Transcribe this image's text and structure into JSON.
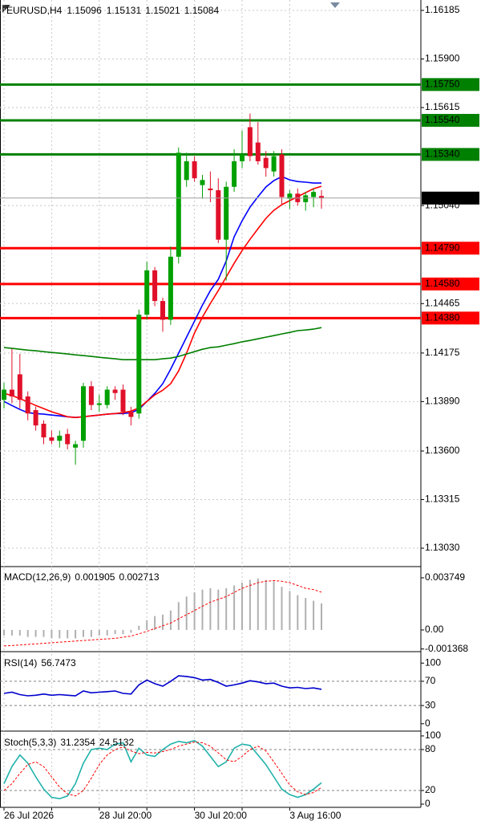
{
  "chart_data": [
    {
      "type": "candlestick",
      "symbol": "EURUSD,H4",
      "categories": [
        "26 Jul 2026",
        null,
        null,
        null,
        null,
        null,
        null,
        null,
        null,
        null,
        null,
        null,
        "28 Jul 20:00",
        null,
        null,
        null,
        null,
        null,
        null,
        null,
        null,
        null,
        null,
        null,
        "30 Jul 20:00",
        null,
        null,
        null,
        null,
        null,
        null,
        null,
        null,
        null,
        null,
        null,
        "3 Aug 16:00",
        null,
        null,
        null,
        null
      ],
      "open": [
        1.139,
        1.1396,
        1.1405,
        1.1392,
        1.1384,
        1.1376,
        1.1368,
        1.1366,
        1.137,
        1.1362,
        1.1366,
        1.1398,
        1.1387,
        1.1387,
        1.1396,
        1.1396,
        1.1383,
        1.1382,
        1.144,
        1.1466,
        1.1448,
        1.1437,
        1.1474,
        1.1519,
        1.153,
        1.1516,
        1.1514,
        1.1513,
        1.1484,
        1.1515,
        1.153,
        1.155,
        1.1541,
        1.1532,
        1.1524,
        1.1534,
        1.1508,
        1.1511,
        1.1506,
        1.1509,
        1.15096
      ],
      "high": [
        1.14,
        1.142,
        1.1417,
        1.1395,
        1.1386,
        1.1378,
        1.1372,
        1.1372,
        1.1373,
        1.1366,
        1.14,
        1.1401,
        1.1393,
        1.1398,
        1.1398,
        1.1399,
        1.1386,
        1.1443,
        1.1471,
        1.1468,
        1.145,
        1.148,
        1.1538,
        1.1535,
        1.1533,
        1.1522,
        1.1524,
        1.152,
        1.1518,
        1.1537,
        1.1548,
        1.1558,
        1.1553,
        1.1536,
        1.1536,
        1.1537,
        1.1513,
        1.1514,
        1.1512,
        1.1514,
        1.15131
      ],
      "low": [
        1.1385,
        1.1388,
        1.1385,
        1.1378,
        1.1372,
        1.1364,
        1.1364,
        1.1362,
        1.1361,
        1.1352,
        1.1362,
        1.1384,
        1.1383,
        1.1385,
        1.139,
        1.1381,
        1.1375,
        1.1379,
        1.1437,
        1.1445,
        1.143,
        1.1434,
        1.147,
        1.1515,
        1.1518,
        1.1508,
        1.1506,
        1.1482,
        1.146,
        1.1512,
        1.1526,
        1.153,
        1.1528,
        1.1521,
        1.1521,
        1.1505,
        1.1502,
        1.1504,
        1.1501,
        1.1503,
        1.15021
      ],
      "close": [
        1.1396,
        1.1392,
        1.139,
        1.1382,
        1.1375,
        1.1368,
        1.1366,
        1.1369,
        1.1364,
        1.1364,
        1.1398,
        1.1387,
        1.1388,
        1.1396,
        1.1394,
        1.1383,
        1.138,
        1.144,
        1.1466,
        1.1448,
        1.1437,
        1.1474,
        1.1535,
        1.153,
        1.152,
        1.1519,
        1.1513,
        1.1484,
        1.1515,
        1.153,
        1.1534,
        1.1533,
        1.153,
        1.1526,
        1.1533,
        1.1509,
        1.1511,
        1.1506,
        1.151,
        1.1512,
        1.15084
      ],
      "up_color": "#00a000",
      "down_color": "#e0102a",
      "series": [
        {
          "color": "#0000ff",
          "style": "line",
          "values": [
            1.13891,
            1.13867,
            1.13844,
            1.13825,
            1.1382,
            1.13816,
            1.13811,
            1.13806,
            1.13801,
            1.13797,
            1.13801,
            1.13806,
            1.13811,
            1.13816,
            1.1382,
            1.1382,
            1.13825,
            1.13844,
            1.13891,
            1.13938,
            1.13995,
            1.1408,
            1.14174,
            1.14268,
            1.14362,
            1.14456,
            1.14541,
            1.14607,
            1.14715,
            1.14857,
            1.14951,
            1.15031,
            1.15092,
            1.15149,
            1.15186,
            1.1521,
            1.15191,
            1.15181,
            1.15177,
            1.15172,
            1.15172
          ]
        },
        {
          "color": "#ff0000",
          "style": "line",
          "values": [
            1.13938,
            1.13926,
            1.13907,
            1.13888,
            1.13867,
            1.13849,
            1.1383,
            1.13816,
            1.13801,
            1.13797,
            1.13801,
            1.13806,
            1.13811,
            1.13816,
            1.1382,
            1.13825,
            1.13834,
            1.13853,
            1.13891,
            1.13929,
            1.13957,
            1.13995,
            1.1407,
            1.14174,
            1.14292,
            1.14386,
            1.14466,
            1.14541,
            1.14621,
            1.14701,
            1.14776,
            1.14842,
            1.14904,
            1.14965,
            1.15012,
            1.15045,
            1.15069,
            1.15092,
            1.15116,
            1.15139,
            1.15153
          ]
        },
        {
          "color": "#008000",
          "style": "line",
          "values": [
            1.14207,
            1.14202,
            1.14197,
            1.14192,
            1.14188,
            1.14183,
            1.14178,
            1.14174,
            1.14169,
            1.14164,
            1.1416,
            1.14155,
            1.1415,
            1.14145,
            1.14141,
            1.14136,
            1.14136,
            1.14136,
            1.14136,
            1.14136,
            1.14141,
            1.14145,
            1.14155,
            1.14169,
            1.14183,
            1.14197,
            1.14207,
            1.14211,
            1.14221,
            1.1423,
            1.14241,
            1.14249,
            1.14258,
            1.14268,
            1.14277,
            1.14287,
            1.14296,
            1.14306,
            1.1431,
            1.14315,
            1.14324
          ]
        }
      ],
      "levels": [
        {
          "value": 1.1575,
          "label": "1.15750",
          "color": "#008000"
        },
        {
          "value": 1.1554,
          "label": "1.15540",
          "color": "#008000"
        },
        {
          "value": 1.1534,
          "label": "1.15340",
          "color": "#008000"
        },
        {
          "value": 1.1479,
          "label": "1.14790",
          "color": "#ff0000"
        },
        {
          "value": 1.1458,
          "label": "1.14580",
          "color": "#ff0000"
        },
        {
          "value": 1.1438,
          "label": "1.14380",
          "color": "#ff0000"
        }
      ],
      "ylim": [
        1.12922,
        1.16246
      ],
      "yticks": [
        1.16185,
        {
          "value": 1.159,
          "label": "1.15900"
        },
        1.15615,
        {
          "value": 1.1504,
          "label": "1.15040"
        },
        1.14465,
        1.14175,
        {
          "value": 1.1389,
          "label": "1.13890"
        },
        {
          "value": 1.136,
          "label": "1.13600"
        },
        1.13315,
        {
          "value": 1.1303,
          "label": "1.13030"
        }
      ],
      "grid": true
    },
    {
      "type": "macd",
      "title": "MACD(12,26,9)",
      "series": [
        {
          "color": "#b0b0b0",
          "style": "histogram",
          "values": [
            -0.0004,
            -0.0004,
            -0.0004,
            -0.0005,
            -0.0005,
            -0.0005,
            -0.0006,
            -0.0006,
            -0.0006,
            -0.0006,
            -0.0005,
            -0.0005,
            -0.0004,
            -0.0004,
            -0.0003,
            -0.0003,
            -0.0002,
            0.0003,
            0.0007,
            0.001,
            0.0011,
            0.0014,
            0.002,
            0.0024,
            0.0027,
            0.0029,
            0.003,
            0.0029,
            0.003,
            0.0032,
            0.0034,
            0.0036,
            0.0037,
            0.0036,
            0.0035,
            0.0031,
            0.0028,
            0.0025,
            0.0023,
            0.0021,
            0.001905
          ]
        },
        {
          "color": "#ff0000",
          "style": "dash",
          "values": [
            -0.00115,
            -0.00112,
            -0.00108,
            -0.00104,
            -0.001,
            -0.00096,
            -0.00092,
            -0.00088,
            -0.00084,
            -0.0008,
            -0.00076,
            -0.00072,
            -0.00068,
            -0.00064,
            -0.0006,
            -0.00052,
            -0.00044,
            -0.00028,
            -0.0001,
            0.0001,
            0.0003,
            0.0005,
            0.0008,
            0.0011,
            0.0014,
            0.0017,
            0.002,
            0.0022,
            0.0024,
            0.0027,
            0.003,
            0.0032,
            0.0034,
            0.0035,
            0.00355,
            0.0035,
            0.0034,
            0.0032,
            0.003,
            0.0029,
            0.002713
          ]
        }
      ],
      "ylim": [
        -0.00156,
        0.00444
      ],
      "yticks": [
        0.003749,
        {
          "value": 0,
          "label": "0.00"
        },
        -0.001368
      ]
    },
    {
      "type": "rsi",
      "title": "RSI(14)",
      "series": [
        {
          "color": "#0000cd",
          "style": "line",
          "values": [
            50,
            52,
            48,
            46,
            47,
            49,
            47,
            48,
            47,
            46,
            54,
            51,
            52,
            53,
            54,
            50,
            49,
            64,
            72,
            66,
            62,
            70,
            79,
            78,
            76,
            72,
            73,
            68,
            62,
            64,
            67,
            71,
            69,
            66,
            67,
            62,
            59,
            60,
            58,
            59,
            56.7473
          ]
        }
      ],
      "levels": [
        70,
        30
      ],
      "ylim": [
        -12.2,
        114.9
      ],
      "yticks": [
        100,
        70,
        30,
        0
      ]
    },
    {
      "type": "stochastic",
      "title": "Stoch(5,3,3)",
      "series": [
        {
          "color": "#20b2aa",
          "style": "line",
          "values": [
            30,
            55,
            72,
            60,
            40,
            22,
            10,
            8,
            12,
            30,
            60,
            80,
            82,
            80,
            88,
            90,
            62,
            82,
            72,
            70,
            80,
            88,
            92,
            90,
            93,
            85,
            70,
            55,
            62,
            82,
            88,
            86,
            72,
            58,
            40,
            22,
            14,
            10,
            14,
            22,
            31.2354
          ]
        },
        {
          "color": "#ff0000",
          "style": "dash",
          "values": [
            20,
            30,
            45,
            58,
            62,
            55,
            40,
            25,
            15,
            12,
            20,
            38,
            58,
            72,
            80,
            84,
            78,
            74,
            76,
            75,
            77,
            80,
            85,
            88,
            91,
            90,
            85,
            75,
            65,
            62,
            70,
            80,
            85,
            78,
            62,
            45,
            28,
            18,
            14,
            17,
            24.5132
          ]
        }
      ],
      "levels": [
        80,
        20
      ],
      "ylim": [
        -4.7,
        103.5
      ],
      "yticks": [
        100,
        80,
        20,
        0
      ]
    }
  ]
}
